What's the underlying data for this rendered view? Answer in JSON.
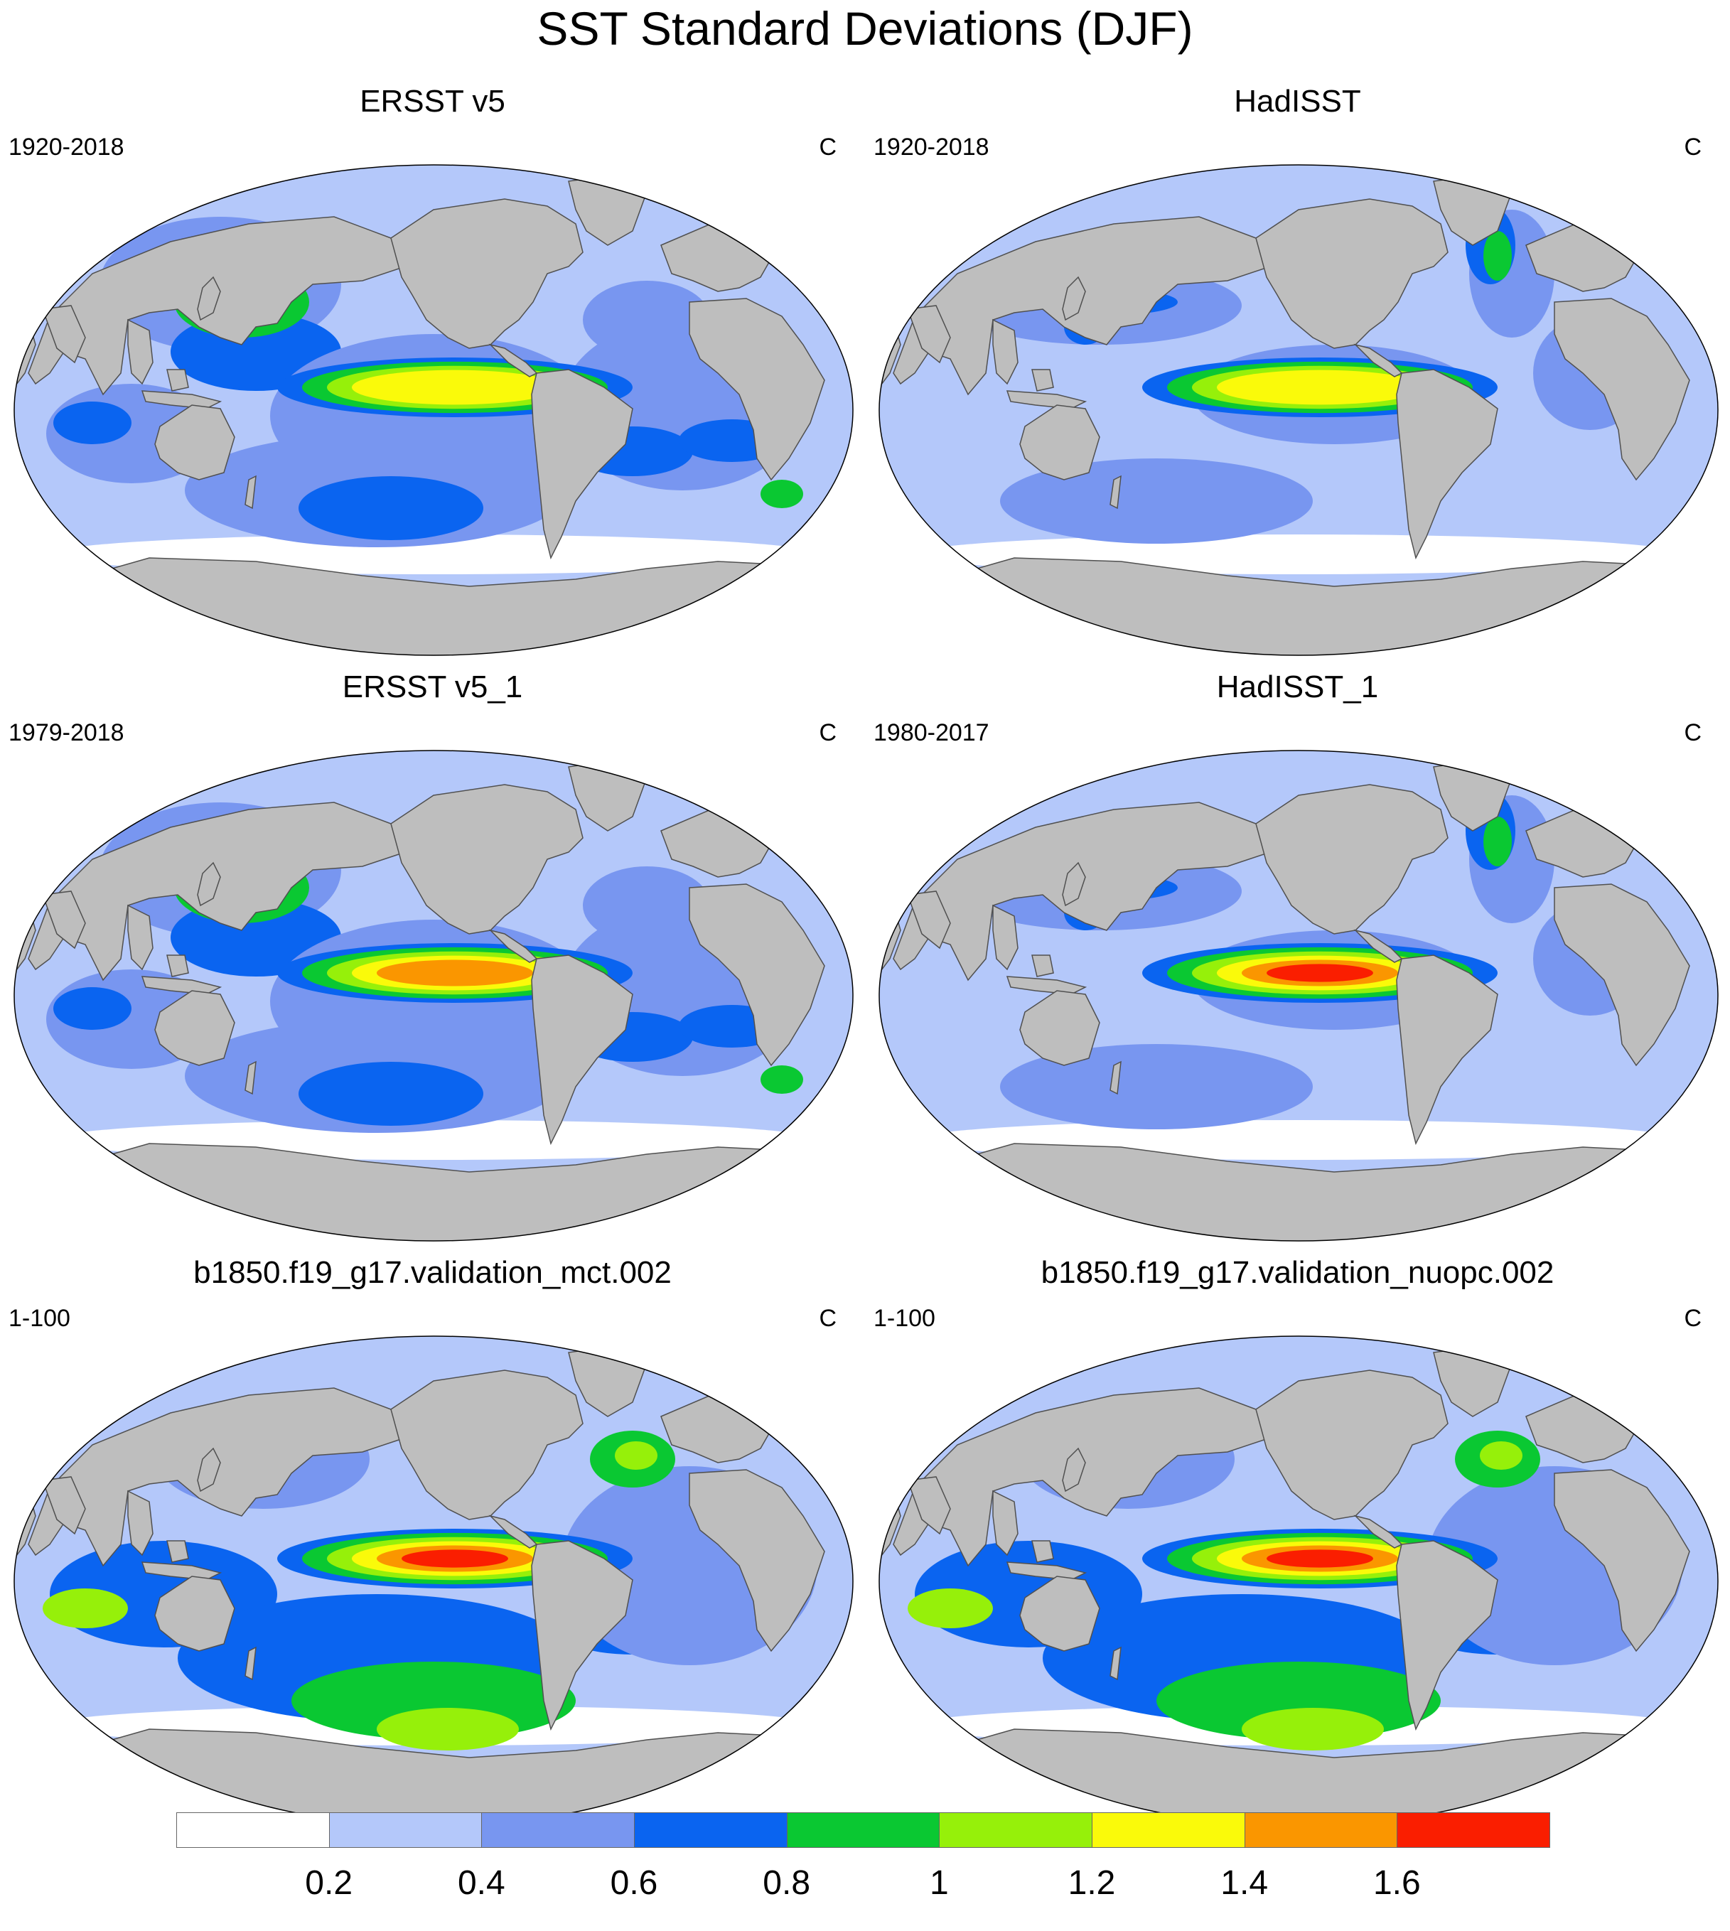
{
  "title": "SST Standard Deviations (DJF)",
  "units": "C",
  "panels": [
    {
      "title": "ERSST v5",
      "period": "1920-2018",
      "units": "C",
      "pattern": "obs_coarse",
      "nino_max": 1.2
    },
    {
      "title": "HadISST",
      "period": "1920-2018",
      "units": "C",
      "pattern": "obs_fine",
      "nino_max": 1.2
    },
    {
      "title": "ERSST v5_1",
      "period": "1979-2018",
      "units": "C",
      "pattern": "obs_coarse",
      "nino_max": 1.4
    },
    {
      "title": "HadISST_1",
      "period": "1980-2017",
      "units": "C",
      "pattern": "obs_fine",
      "nino_max": 1.6
    },
    {
      "title": "b1850.f19_g17.validation_mct.002",
      "period": "1-100",
      "units": "C",
      "pattern": "model",
      "nino_max": 1.8
    },
    {
      "title": "b1850.f19_g17.validation_nuopc.002",
      "period": "1-100",
      "units": "C",
      "pattern": "model",
      "nino_max": 1.8
    }
  ],
  "colorbar": {
    "colors": [
      "#ffffff",
      "#b4c8fa",
      "#7896f0",
      "#0a64f0",
      "#0ac832",
      "#96f00a",
      "#fafa0a",
      "#fa9600",
      "#fa1e00"
    ],
    "labels": [
      "0.2",
      "0.4",
      "0.6",
      "0.8",
      "1",
      "1.2",
      "1.4",
      "1.6"
    ]
  },
  "colors": {
    "land": "#bebebe",
    "coastline": "#505050"
  }
}
